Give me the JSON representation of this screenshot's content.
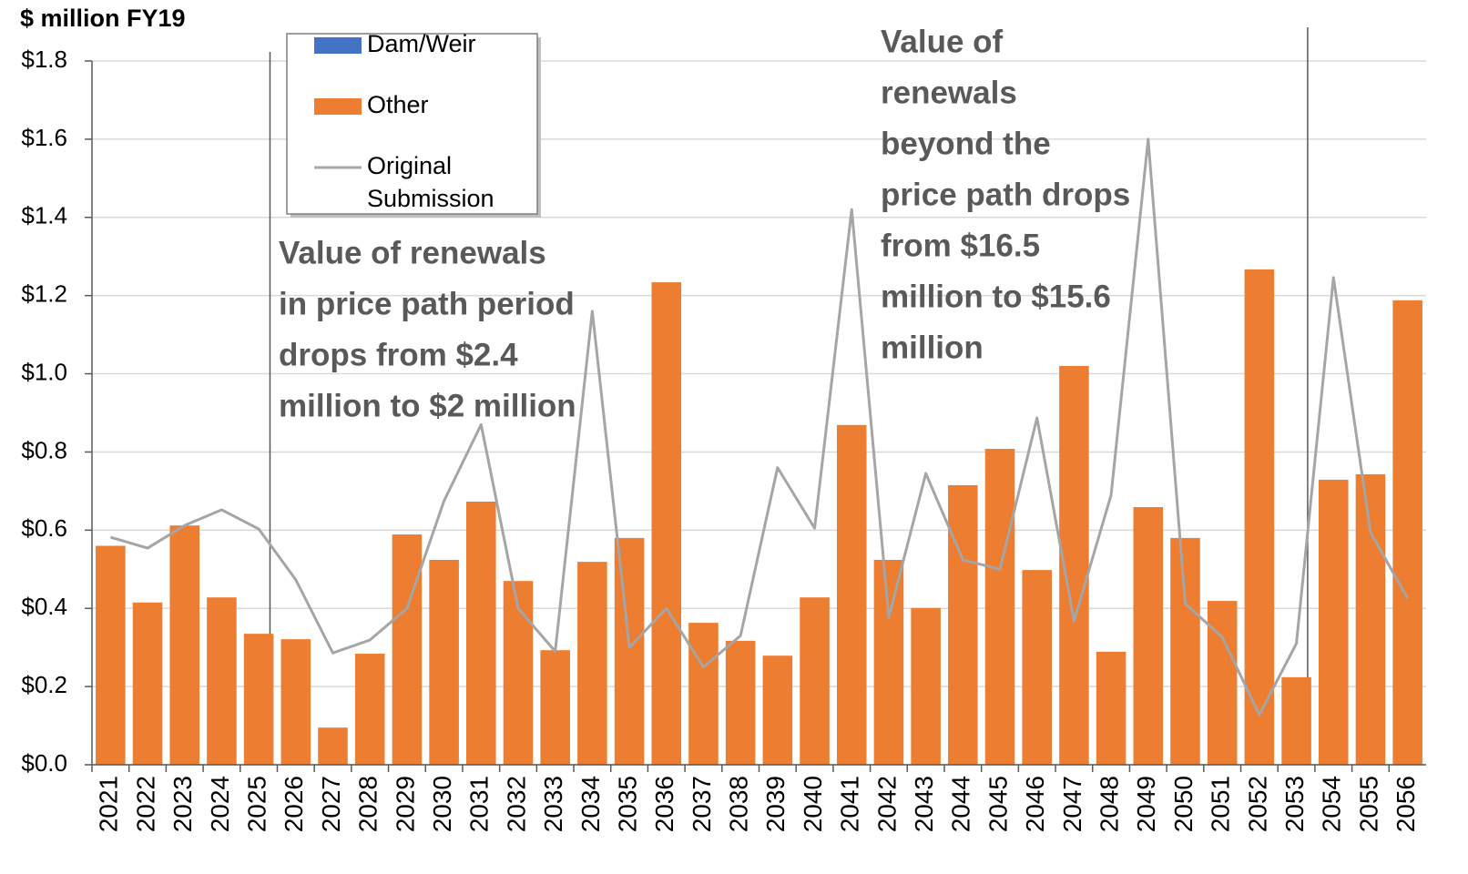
{
  "chart_data": {
    "type": "bar",
    "y_axis_label": "$ million  FY19",
    "categories": [
      "2021",
      "2022",
      "2023",
      "2024",
      "2025",
      "2026",
      "2027",
      "2028",
      "2029",
      "2030",
      "2031",
      "2032",
      "2033",
      "2034",
      "2035",
      "2036",
      "2037",
      "2038",
      "2039",
      "2040",
      "2041",
      "2042",
      "2043",
      "2044",
      "2045",
      "2046",
      "2047",
      "2048",
      "2049",
      "2050",
      "2051",
      "2052",
      "2053",
      "2054",
      "2055",
      "2056"
    ],
    "series": [
      {
        "name": "Dam/Weir",
        "type": "bar",
        "color": "#4472c4",
        "values": [
          0,
          0,
          0,
          0,
          0,
          0,
          0,
          0,
          0,
          0,
          0,
          0,
          0,
          0,
          0,
          0,
          0,
          0,
          0,
          0,
          0,
          0,
          0,
          0,
          0,
          0,
          0,
          0,
          0,
          0,
          0,
          0,
          0,
          0,
          0,
          0
        ]
      },
      {
        "name": "Other",
        "type": "bar",
        "color": "#ed7d31",
        "values": [
          0.56,
          0.415,
          0.612,
          0.428,
          0.335,
          0.321,
          0.095,
          0.284,
          0.589,
          0.524,
          0.673,
          0.47,
          0.293,
          0.519,
          0.58,
          1.234,
          0.363,
          0.317,
          0.279,
          0.428,
          0.869,
          0.524,
          0.401,
          0.715,
          0.808,
          0.498,
          1.02,
          0.289,
          0.659,
          0.58,
          0.419,
          1.267,
          0.224,
          0.729,
          0.743,
          1.188
        ]
      },
      {
        "name": "Original Submission",
        "type": "line",
        "color": "#a5a5a5",
        "values": [
          0.582,
          0.554,
          0.612,
          0.652,
          0.603,
          0.473,
          0.286,
          0.319,
          0.4,
          0.675,
          0.87,
          0.4,
          0.29,
          1.16,
          0.3,
          0.4,
          0.25,
          0.33,
          0.76,
          0.605,
          1.42,
          0.377,
          0.745,
          0.524,
          0.5,
          0.887,
          0.368,
          0.69,
          1.6,
          0.412,
          0.326,
          0.128,
          0.31,
          1.246,
          0.594,
          0.426
        ]
      }
    ],
    "stacked": true,
    "ylim": [
      0,
      1.8
    ],
    "yticks": [
      {
        "value": 0,
        "label": "$0.0"
      },
      {
        "value": 0.2,
        "label": "$0.2"
      },
      {
        "value": 0.4,
        "label": "$0.4"
      },
      {
        "value": 0.6,
        "label": "$0.6"
      },
      {
        "value": 0.8,
        "label": "$0.8"
      },
      {
        "value": 1,
        "label": "$1.0"
      },
      {
        "value": 1.2,
        "label": "$1.2"
      },
      {
        "value": 1.4,
        "label": "$1.4"
      },
      {
        "value": 1.6,
        "label": "$1.6"
      },
      {
        "value": 1.8,
        "label": "$1.8"
      }
    ],
    "grid": true,
    "legend": "top-left",
    "annotations": [
      {
        "lines": [
          "Value of renewals",
          "in price path period",
          "drops from $2.4",
          "million to $2 million"
        ]
      },
      {
        "lines": [
          "Value of",
          "renewals",
          "beyond the",
          "price path drops",
          "from $16.5",
          "million to $15.6",
          "million"
        ]
      }
    ]
  }
}
